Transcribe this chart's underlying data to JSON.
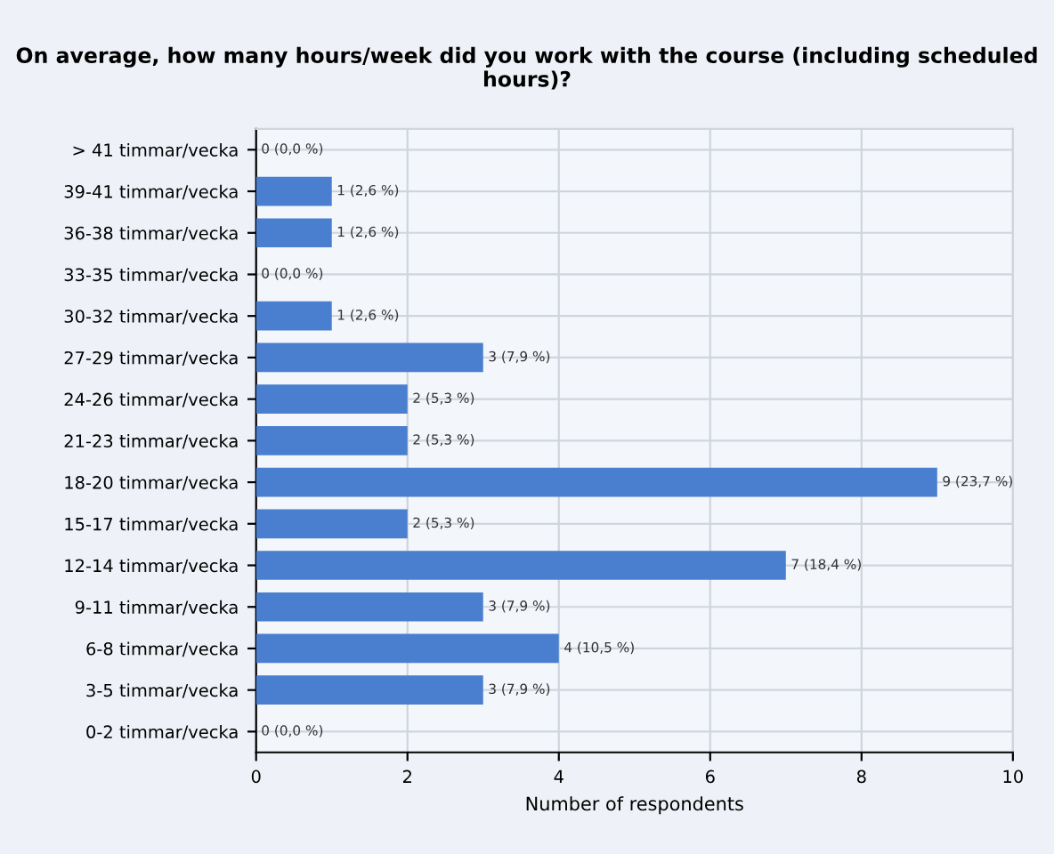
{
  "chart_data": {
    "type": "bar",
    "orientation": "horizontal",
    "title": "On average, how many hours/week did you work with the course (including scheduled hours)?",
    "xlabel": "Number of respondents",
    "categories": [
      "> 41 timmar/vecka",
      "39-41 timmar/vecka",
      "36-38 timmar/vecka",
      "33-35 timmar/vecka",
      "30-32 timmar/vecka",
      "27-29 timmar/vecka",
      "24-26 timmar/vecka",
      "21-23 timmar/vecka",
      "18-20 timmar/vecka",
      "15-17 timmar/vecka",
      "12-14 timmar/vecka",
      "9-11 timmar/vecka",
      "6-8 timmar/vecka",
      "3-5 timmar/vecka",
      "0-2 timmar/vecka"
    ],
    "values": [
      0,
      1,
      1,
      0,
      1,
      3,
      2,
      2,
      9,
      2,
      7,
      3,
      4,
      3,
      0
    ],
    "value_labels": [
      "0 (0,0 %)",
      "1 (2,6 %)",
      "1 (2,6 %)",
      "0 (0,0 %)",
      "1 (2,6 %)",
      "3 (7,9 %)",
      "2 (5,3 %)",
      "2 (5,3 %)",
      "9 (23,7 %)",
      "2 (5,3 %)",
      "7 (18,4 %)",
      "3 (7,9 %)",
      "4 (10,5 %)",
      "3 (7,9 %)",
      "0 (0,0 %)"
    ],
    "color": "#4a7fcf",
    "xlim": [
      0,
      10
    ],
    "xticks": [
      0,
      2,
      4,
      6,
      8,
      10
    ],
    "grid": true
  }
}
